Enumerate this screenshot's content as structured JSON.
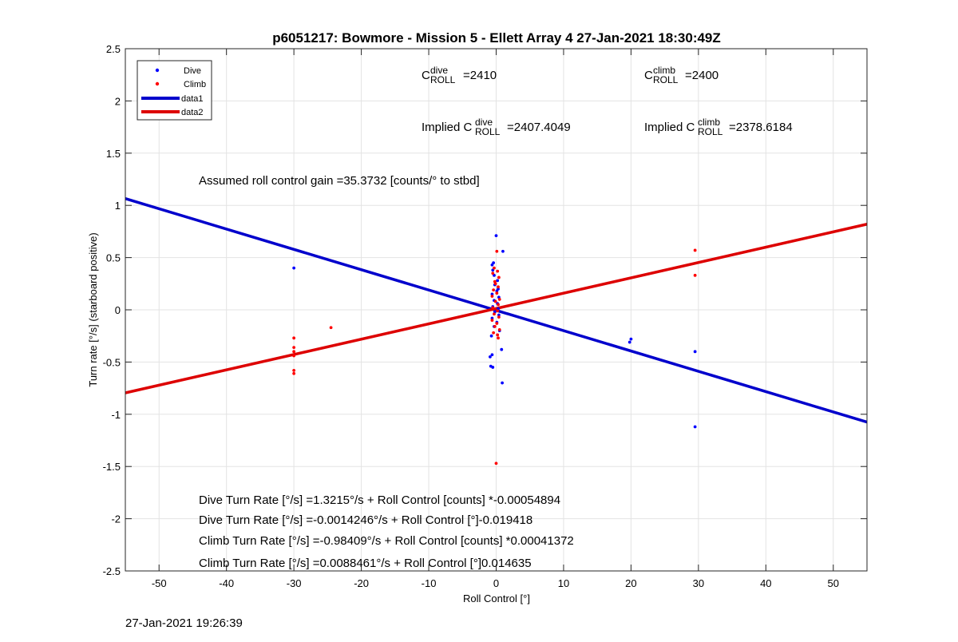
{
  "chart_data": {
    "type": "scatter",
    "title": "p6051217: Bowmore - Mission 5 - Ellett Array 4 27-Jan-2021 18:30:49Z",
    "xlabel": "Roll Control [°]",
    "ylabel": "Turn rate [°/s] (starboard positive)",
    "xlim": [
      -55,
      55
    ],
    "ylim": [
      -2.5,
      2.5
    ],
    "xticks": [
      -50,
      -40,
      -30,
      -20,
      -10,
      0,
      10,
      20,
      30,
      40,
      50
    ],
    "xtick_labels": [
      "-50",
      "-40",
      "-30",
      "-20",
      "-10",
      "0",
      "10",
      "20",
      "30",
      "40",
      "50"
    ],
    "yticks": [
      -2.5,
      -2,
      -1.5,
      -1,
      -0.5,
      0,
      0.5,
      1,
      1.5,
      2,
      2.5
    ],
    "ytick_labels": [
      "-2.5",
      "-2",
      "-1.5",
      "-1",
      "-0.5",
      "0",
      "0.5",
      "1",
      "1.5",
      "2",
      "2.5"
    ],
    "grid": true,
    "legend_position": "top-left",
    "series": [
      {
        "name": "Dive",
        "kind": "points",
        "color": "#0000ff",
        "points": [
          [
            -30,
            0.4
          ],
          [
            0,
            0.71
          ],
          [
            1,
            0.56
          ],
          [
            0.3,
            0.2
          ],
          [
            -0.4,
            0.45
          ],
          [
            -0.6,
            0.43
          ],
          [
            -0.5,
            0.38
          ],
          [
            -0.3,
            0.33
          ],
          [
            0.2,
            0.28
          ],
          [
            -0.2,
            0.24
          ],
          [
            0.1,
            0.18
          ],
          [
            -0.6,
            0.15
          ],
          [
            0.4,
            0.12
          ],
          [
            -0.3,
            0.09
          ],
          [
            0.2,
            0.06
          ],
          [
            -0.5,
            0.03
          ],
          [
            0.3,
            0.01
          ],
          [
            -0.2,
            -0.02
          ],
          [
            0.4,
            -0.05
          ],
          [
            -0.6,
            -0.08
          ],
          [
            0.1,
            -0.12
          ],
          [
            -0.3,
            -0.16
          ],
          [
            0.5,
            -0.2
          ],
          [
            -0.7,
            -0.25
          ],
          [
            0.8,
            -0.38
          ],
          [
            -0.6,
            -0.43
          ],
          [
            -0.9,
            -0.45
          ],
          [
            -0.8,
            -0.54
          ],
          [
            -0.5,
            -0.55
          ],
          [
            0.9,
            -0.7
          ],
          [
            20,
            -0.28
          ],
          [
            19.8,
            -0.31
          ],
          [
            29.5,
            -0.4
          ],
          [
            29.5,
            -1.12
          ]
        ]
      },
      {
        "name": "Climb",
        "kind": "points",
        "color": "#ff0000",
        "points": [
          [
            -30,
            -0.27
          ],
          [
            -30,
            -0.36
          ],
          [
            -30,
            -0.4
          ],
          [
            -30,
            -0.44
          ],
          [
            -30,
            -0.58
          ],
          [
            -30,
            -0.61
          ],
          [
            -24.5,
            -0.17
          ],
          [
            29.5,
            0.57
          ],
          [
            29.5,
            0.33
          ],
          [
            0,
            -1.47
          ],
          [
            0.1,
            0.56
          ],
          [
            -0.3,
            0.4
          ],
          [
            0.2,
            0.37
          ],
          [
            -0.5,
            0.35
          ],
          [
            0.4,
            0.31
          ],
          [
            -0.2,
            0.27
          ],
          [
            0.3,
            0.22
          ],
          [
            -0.4,
            0.19
          ],
          [
            0.1,
            0.16
          ],
          [
            -0.6,
            0.13
          ],
          [
            0.5,
            0.1
          ],
          [
            -0.1,
            0.08
          ],
          [
            0.3,
            0.05
          ],
          [
            -0.5,
            0.02
          ],
          [
            0.2,
            -0.01
          ],
          [
            -0.3,
            -0.04
          ],
          [
            0.4,
            -0.07
          ],
          [
            -0.6,
            -0.1
          ],
          [
            0.1,
            -0.13
          ],
          [
            -0.2,
            -0.16
          ],
          [
            0.5,
            -0.19
          ],
          [
            -0.4,
            -0.22
          ],
          [
            0.2,
            -0.24
          ],
          [
            0.3,
            -0.27
          ],
          [
            -0.1,
            0.25
          ]
        ]
      },
      {
        "name": "data1",
        "kind": "line",
        "color": "#0000cc",
        "x": [
          -55,
          55
        ],
        "y": [
          1.065,
          -1.075
        ]
      },
      {
        "name": "data2",
        "kind": "line",
        "color": "#dd0000",
        "x": [
          -55,
          55
        ],
        "y": [
          -0.795,
          0.82
        ]
      }
    ],
    "annotations": {
      "c_roll_dive": {
        "base": "C",
        "sup": "dive",
        "sub": "ROLL",
        "value": "=2410"
      },
      "c_roll_climb": {
        "base": "C",
        "sup": "climb",
        "sub": "ROLL",
        "value": "=2400"
      },
      "implied_dive": {
        "prefix": "Implied C",
        "sup": "dive",
        "sub": "ROLL",
        "value": "=2407.4049"
      },
      "implied_climb": {
        "prefix": "Implied C",
        "sup": "climb",
        "sub": "ROLL",
        "value": "=2378.6184"
      },
      "gain": "Assumed roll control gain =35.3732 [counts/° to stbd]",
      "fits": [
        "Dive Turn Rate [°/s] =1.3215°/s + Roll Control [counts] *-0.00054894",
        "Dive Turn Rate [°/s] =-0.0014246°/s + Roll Control [°]-0.019418",
        "Climb Turn Rate [°/s] =-0.98409°/s + Roll Control [counts] *0.00041372",
        "Climb Turn Rate [°/s] =0.0088461°/s + Roll Control [°]0.014635"
      ]
    }
  },
  "footer": {
    "timestamp": "27-Jan-2021 19:26:39"
  }
}
